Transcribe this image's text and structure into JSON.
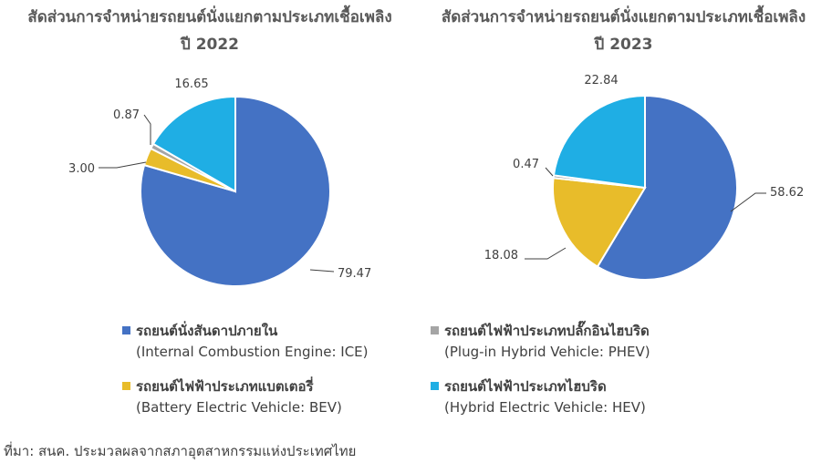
{
  "chart_data": [
    {
      "type": "pie",
      "title": "สัดส่วนการจำหน่ายรถยนต์นั่งแยกตามประเภทเชื้อเพลิง",
      "subtitle": "ปี 2022",
      "categories": [
        "ICE",
        "BEV",
        "PHEV",
        "HEV"
      ],
      "values": [
        79.47,
        3.0,
        0.87,
        16.65
      ],
      "labels": [
        "79.47",
        "3.00",
        "0.87",
        "16.65"
      ]
    },
    {
      "type": "pie",
      "title": "สัดส่วนการจำหน่ายรถยนต์นั่งแยกตามประเภทเชื้อเพลิง",
      "subtitle": "ปี 2023",
      "categories": [
        "ICE",
        "BEV",
        "PHEV",
        "HEV"
      ],
      "values": [
        58.62,
        18.08,
        0.47,
        22.84
      ],
      "labels": [
        "58.62",
        "18.08",
        "0.47",
        "22.84"
      ]
    }
  ],
  "colors": {
    "ICE": "#4472C4",
    "BEV": "#E8BC2A",
    "PHEV": "#A5A5A5",
    "HEV": "#1FAEE4"
  },
  "legend": [
    {
      "key": "ICE",
      "label": "รถยนต์นั่งสันดาปภายใน",
      "sub": "(Internal Combustion Engine: ICE)"
    },
    {
      "key": "PHEV",
      "label": "รถยนต์ไฟฟ้าประเภทปลั๊กอินไฮบริด",
      "sub": "(Plug-in Hybrid Vehicle: PHEV)"
    },
    {
      "key": "BEV",
      "label": "รถยนต์ไฟฟ้าประเภทแบตเตอรี่",
      "sub": "(Battery Electric Vehicle: BEV)"
    },
    {
      "key": "HEV",
      "label": "รถยนต์ไฟฟ้าประเภทไฮบริด",
      "sub": "(Hybrid Electric Vehicle: HEV)"
    }
  ],
  "source": "ที่มา: สนค. ประมวลผลจากสภาอุตสาหกรรมแห่งประเทศไทย"
}
